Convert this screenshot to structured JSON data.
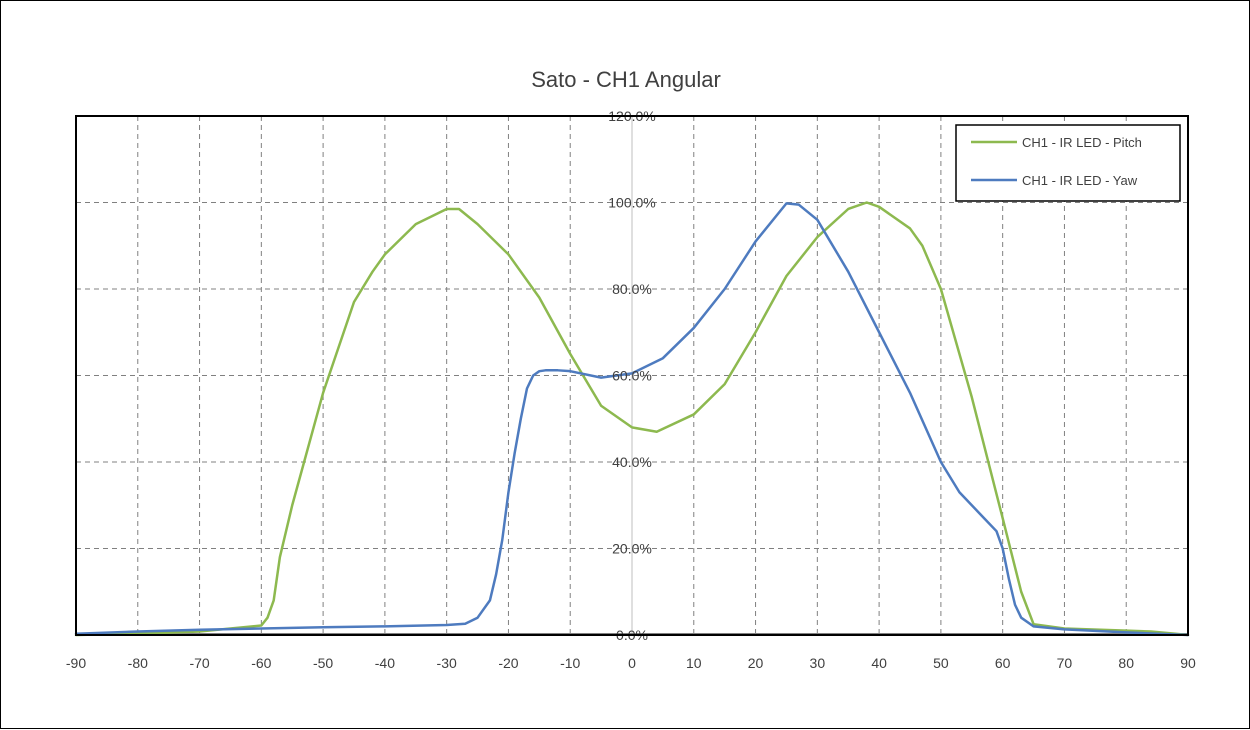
{
  "chart_data": {
    "type": "line",
    "title": "Sato - CH1 Angular",
    "xlabel": "",
    "ylabel": "",
    "xlim": [
      -90,
      90
    ],
    "ylim": [
      0,
      120
    ],
    "x_ticks": [
      -90,
      -80,
      -70,
      -60,
      -50,
      -40,
      -30,
      -20,
      -10,
      0,
      10,
      20,
      30,
      40,
      50,
      60,
      70,
      80,
      90
    ],
    "y_ticks": [
      0,
      20,
      40,
      60,
      80,
      100,
      120
    ],
    "y_tick_labels": [
      "0.0%",
      "20.0%",
      "40.0%",
      "60.0%",
      "80.0%",
      "100.0%",
      "120.0%"
    ],
    "grid": true,
    "legend_position": "top-right",
    "series": [
      {
        "name": "CH1 - IR LED - Pitch",
        "color": "#8DB94F",
        "x": [
          -90,
          -80,
          -70,
          -65,
          -60,
          -59,
          -58,
          -57,
          -55,
          -50,
          -45,
          -42,
          -40,
          -35,
          -30,
          -28,
          -25,
          -20,
          -15,
          -10,
          -5,
          0,
          4,
          10,
          15,
          20,
          25,
          30,
          35,
          38,
          40,
          45,
          47,
          50,
          55,
          60,
          63,
          65,
          70,
          80,
          84,
          88,
          90
        ],
        "y": [
          0,
          0.3,
          0.8,
          1.5,
          2.2,
          4,
          8,
          18,
          30,
          56,
          77,
          84,
          88,
          95,
          98.5,
          98.5,
          95,
          88,
          78,
          65,
          53,
          48,
          47,
          51,
          58,
          70,
          83,
          92,
          98.5,
          100,
          99,
          94,
          90,
          80,
          55,
          27,
          10,
          2.5,
          1.5,
          1,
          0.8,
          0.3,
          0
        ]
      },
      {
        "name": "CH1 - IR LED - Yaw",
        "color": "#4E7BBF",
        "x": [
          -90,
          -80,
          -70,
          -60,
          -50,
          -40,
          -30,
          -27,
          -25,
          -23,
          -22,
          -21,
          -20,
          -19,
          -18,
          -17,
          -16,
          -15,
          -14,
          -12,
          -10,
          -5,
          0,
          5,
          10,
          15,
          20,
          25,
          27,
          30,
          35,
          40,
          45,
          50,
          53,
          57,
          59,
          60,
          61,
          62,
          63,
          65,
          70,
          80,
          90
        ],
        "y": [
          0.3,
          0.8,
          1.2,
          1.5,
          1.8,
          2.0,
          2.3,
          2.6,
          4.0,
          8,
          14,
          22,
          33,
          42,
          50,
          57,
          60,
          61,
          61.2,
          61.2,
          61,
          59.5,
          60.5,
          64,
          71,
          80,
          91,
          99.8,
          99.5,
          96,
          84,
          70,
          56,
          40,
          33,
          27,
          24,
          20,
          13,
          7,
          4,
          2,
          1.3,
          0.6,
          0
        ]
      }
    ]
  }
}
